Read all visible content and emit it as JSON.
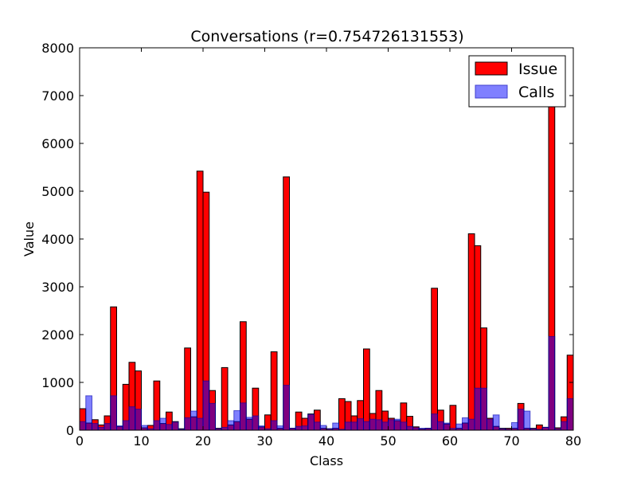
{
  "chart_data": {
    "type": "bar",
    "title": "Conversations (r=0.754726131553)",
    "xlabel": "Class",
    "ylabel": "Value",
    "xlim": [
      0,
      80
    ],
    "ylim": [
      0,
      8000
    ],
    "xticks": [
      0,
      10,
      20,
      30,
      40,
      50,
      60,
      70,
      80
    ],
    "yticks": [
      0,
      1000,
      2000,
      3000,
      4000,
      5000,
      6000,
      7000,
      8000
    ],
    "legend_position": "top-right",
    "categories": [
      0,
      1,
      2,
      3,
      4,
      5,
      6,
      7,
      8,
      9,
      10,
      11,
      12,
      13,
      14,
      15,
      16,
      17,
      18,
      19,
      20,
      21,
      22,
      23,
      24,
      25,
      26,
      27,
      28,
      29,
      30,
      31,
      32,
      33,
      34,
      35,
      36,
      37,
      38,
      39,
      40,
      41,
      42,
      43,
      44,
      45,
      46,
      47,
      48,
      49,
      50,
      51,
      52,
      53,
      54,
      55,
      56,
      57,
      58,
      59,
      60,
      61,
      62,
      63,
      64,
      65,
      66,
      67,
      68,
      69,
      70,
      71,
      72,
      73,
      74,
      75,
      76,
      77,
      78,
      79
    ],
    "series": [
      {
        "name": "Issue",
        "color": "#ff0000",
        "values": [
          450,
          150,
          220,
          110,
          300,
          2580,
          80,
          960,
          1420,
          1240,
          50,
          100,
          1030,
          140,
          380,
          180,
          30,
          1720,
          280,
          5420,
          4980,
          830,
          40,
          1310,
          110,
          180,
          2270,
          230,
          880,
          70,
          320,
          1640,
          40,
          5300,
          40,
          380,
          250,
          340,
          420,
          40,
          30,
          40,
          660,
          600,
          300,
          620,
          1700,
          350,
          830,
          400,
          250,
          200,
          570,
          290,
          70,
          30,
          40,
          2970,
          420,
          130,
          520,
          40,
          150,
          4110,
          3860,
          2140,
          250,
          80,
          40,
          40,
          40,
          560,
          40,
          40,
          110,
          60,
          6820,
          50,
          280,
          1570
        ]
      },
      {
        "name": "Calls",
        "color": "#8080ff",
        "values": [
          180,
          720,
          140,
          60,
          140,
          720,
          90,
          200,
          490,
          440,
          100,
          30,
          200,
          250,
          120,
          170,
          20,
          260,
          400,
          250,
          1030,
          560,
          30,
          60,
          200,
          410,
          570,
          270,
          300,
          90,
          30,
          200,
          90,
          940,
          40,
          80,
          90,
          330,
          170,
          100,
          30,
          150,
          20,
          170,
          170,
          240,
          180,
          230,
          220,
          170,
          220,
          230,
          170,
          80,
          50,
          40,
          40,
          340,
          180,
          150,
          40,
          130,
          260,
          230,
          880,
          880,
          230,
          320,
          30,
          20,
          160,
          440,
          400,
          30,
          20,
          60,
          1960,
          30,
          180,
          660
        ]
      }
    ]
  }
}
